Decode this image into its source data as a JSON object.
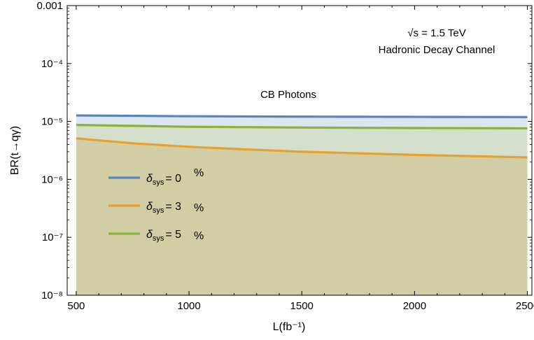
{
  "chart_data": {
    "type": "area",
    "xlabel": "L(fb⁻¹)",
    "ylabel": "BR(t→qγ)",
    "xlim": [
      460,
      2520
    ],
    "ylim": [
      1e-08,
      0.001
    ],
    "yscale": "log",
    "x_ticks": [
      "500",
      "1000",
      "1500",
      "2000",
      "2500"
    ],
    "y_ticks": [
      "10⁻⁸",
      "10⁻⁷",
      "10⁻⁶",
      "10⁻⁵",
      "10⁻⁴",
      "0.001"
    ],
    "grid": false,
    "legend_position": "lower-left",
    "annotations": {
      "energy": "√s = 1.5 TeV",
      "channel": "Hadronic Decay Channel",
      "label": "CB Photons"
    },
    "series": [
      {
        "name": "δsys = 0 %",
        "legend_symbol": "δ",
        "legend_subscript": "sys",
        "legend_value": "= 0",
        "legend_unit": "%",
        "color": "#5b84b8",
        "fill": "#dce6f0",
        "x": [
          500,
          1000,
          1500,
          2000,
          2500
        ],
        "values": [
          1.27e-05,
          1.23e-05,
          1.21e-05,
          1.2e-05,
          1.19e-05
        ]
      },
      {
        "name": "δsys = 3 %",
        "legend_symbol": "δ",
        "legend_subscript": "sys",
        "legend_value": "= 3",
        "legend_unit": "%",
        "color": "#e8a030",
        "fill": "#d1cda4",
        "x": [
          500,
          750,
          1000,
          1250,
          1500,
          1750,
          2000,
          2250,
          2500
        ],
        "values": [
          5.1e-06,
          4.2e-06,
          3.65e-06,
          3.3e-06,
          3e-06,
          2.82e-06,
          2.65e-06,
          2.52e-06,
          2.4e-06
        ]
      },
      {
        "name": "δsys = 5 %",
        "legend_symbol": "δ",
        "legend_subscript": "sys",
        "legend_value": "= 5",
        "legend_unit": "%",
        "color": "#8cb23a",
        "fill": "#d4e0cb",
        "x": [
          500,
          1000,
          1500,
          2000,
          2500
        ],
        "values": [
          8.7e-06,
          8.1e-06,
          7.85e-06,
          7.7e-06,
          7.6e-06
        ]
      }
    ]
  }
}
